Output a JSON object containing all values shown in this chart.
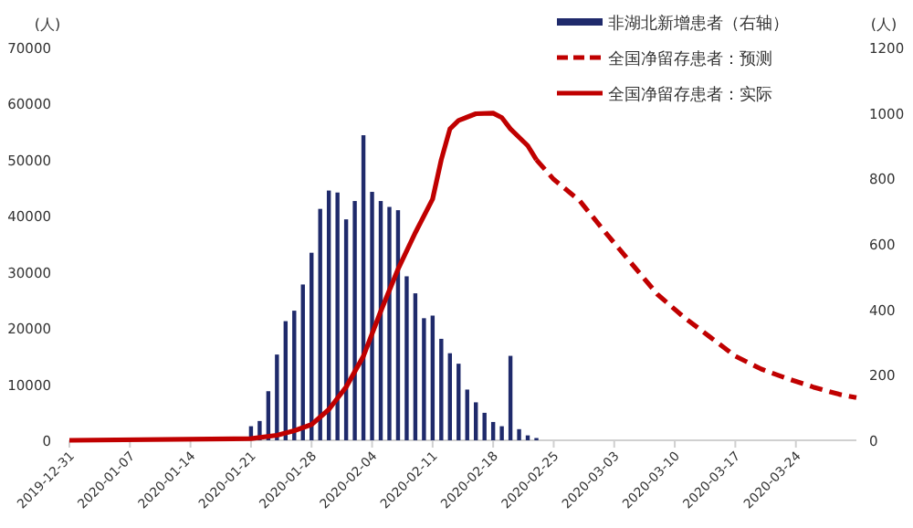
{
  "chart_data": {
    "type": "bar",
    "ylabel": "(人)",
    "y2label": "(人)",
    "legend": "top right",
    "xlim": [
      "2019-12-31",
      "2020-03-31"
    ],
    "xticks": [
      "2019-12-31",
      "2020-01-07",
      "2020-01-14",
      "2020-01-21",
      "2020-01-28",
      "2020-02-04",
      "2020-02-11",
      "2020-02-18",
      "2020-02-25",
      "2020-03-03",
      "2020-03-10",
      "2020-03-17",
      "2020-03-24"
    ],
    "ylim": [
      0,
      70000
    ],
    "yticks": [
      0,
      10000,
      20000,
      30000,
      40000,
      50000,
      60000,
      70000
    ],
    "y2lim": [
      0,
      1200
    ],
    "y2ticks": [
      0,
      200,
      400,
      600,
      800,
      1000,
      1200
    ],
    "series": [
      {
        "name": "非湖北新增患者（右轴）",
        "axis": "y2",
        "color": "#1f2a6b",
        "x": [
          "2020-01-21",
          "2020-01-22",
          "2020-01-23",
          "2020-01-24",
          "2020-01-25",
          "2020-01-26",
          "2020-01-27",
          "2020-01-28",
          "2020-01-29",
          "2020-01-30",
          "2020-01-31",
          "2020-02-01",
          "2020-02-02",
          "2020-02-03",
          "2020-02-04",
          "2020-02-05",
          "2020-02-06",
          "2020-02-07",
          "2020-02-08",
          "2020-02-09",
          "2020-02-10",
          "2020-02-11",
          "2020-02-12",
          "2020-02-13",
          "2020-02-14",
          "2020-02-15",
          "2020-02-16",
          "2020-02-17",
          "2020-02-18",
          "2020-02-19",
          "2020-02-20",
          "2020-02-21",
          "2020-02-22",
          "2020-02-23"
        ],
        "values": [
          43,
          59,
          150,
          262,
          364,
          396,
          476,
          573,
          707,
          763,
          757,
          675,
          731,
          932,
          759,
          731,
          713,
          703,
          501,
          449,
          373,
          381,
          310,
          266,
          234,
          155,
          116,
          84,
          56,
          43,
          258,
          34,
          15,
          7
        ]
      },
      {
        "name": "全国净留存患者：预测",
        "type": "line",
        "line_style": "dashed",
        "color": "#c00000",
        "x": [
          "2020-02-23",
          "2020-02-25",
          "2020-02-28",
          "2020-03-02",
          "2020-03-05",
          "2020-03-08",
          "2020-03-11",
          "2020-03-14",
          "2020-03-17",
          "2020-03-20",
          "2020-03-23",
          "2020-03-26",
          "2020-03-29",
          "2020-03-31"
        ],
        "values": [
          50000,
          46500,
          42700,
          37000,
          31500,
          26000,
          22000,
          18500,
          15000,
          12700,
          11000,
          9500,
          8200,
          7600
        ]
      },
      {
        "name": "全国净留存患者：实际",
        "type": "line",
        "line_style": "solid",
        "color": "#c00000",
        "x": [
          "2019-12-31",
          "2020-01-21",
          "2020-01-24",
          "2020-01-26",
          "2020-01-28",
          "2020-01-30",
          "2020-02-01",
          "2020-02-03",
          "2020-02-05",
          "2020-02-07",
          "2020-02-09",
          "2020-02-11",
          "2020-02-12",
          "2020-02-13",
          "2020-02-14",
          "2020-02-16",
          "2020-02-18",
          "2020-02-19",
          "2020-02-20",
          "2020-02-22",
          "2020-02-23"
        ],
        "values": [
          0,
          300,
          900,
          1700,
          2800,
          5500,
          9500,
          15000,
          23000,
          30500,
          37000,
          43000,
          50000,
          55500,
          57000,
          58200,
          58300,
          57500,
          55500,
          52500,
          50000
        ]
      }
    ]
  }
}
